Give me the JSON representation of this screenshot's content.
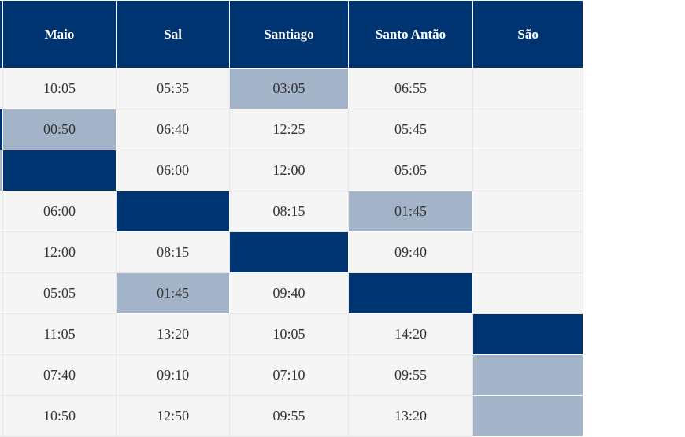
{
  "headers": [
    "",
    "Maio",
    "Sal",
    "Santiago",
    "Santo Antão",
    "São"
  ],
  "rows": [
    {
      "cells": [
        {
          "v": "",
          "s": "plain"
        },
        {
          "v": "10:05",
          "s": "plain"
        },
        {
          "v": "05:35",
          "s": "plain"
        },
        {
          "v": "03:05",
          "s": "light"
        },
        {
          "v": "06:55",
          "s": "plain"
        },
        {
          "v": "",
          "s": "plain"
        }
      ]
    },
    {
      "cells": [
        {
          "v": "",
          "s": "dark"
        },
        {
          "v": "00:50",
          "s": "light"
        },
        {
          "v": "06:40",
          "s": "plain"
        },
        {
          "v": "12:25",
          "s": "plain"
        },
        {
          "v": "05:45",
          "s": "plain"
        },
        {
          "v": "",
          "s": "plain"
        }
      ]
    },
    {
      "cells": [
        {
          "v": "",
          "s": "light"
        },
        {
          "v": "",
          "s": "dark"
        },
        {
          "v": "06:00",
          "s": "plain"
        },
        {
          "v": "12:00",
          "s": "plain"
        },
        {
          "v": "05:05",
          "s": "plain"
        },
        {
          "v": "",
          "s": "plain"
        }
      ]
    },
    {
      "cells": [
        {
          "v": "",
          "s": "plain"
        },
        {
          "v": "06:00",
          "s": "plain"
        },
        {
          "v": "",
          "s": "dark"
        },
        {
          "v": "08:15",
          "s": "plain"
        },
        {
          "v": "01:45",
          "s": "light"
        },
        {
          "v": "",
          "s": "plain"
        }
      ]
    },
    {
      "cells": [
        {
          "v": "",
          "s": "plain"
        },
        {
          "v": "12:00",
          "s": "plain"
        },
        {
          "v": "08:15",
          "s": "plain"
        },
        {
          "v": "",
          "s": "dark"
        },
        {
          "v": "09:40",
          "s": "plain"
        },
        {
          "v": "",
          "s": "plain"
        }
      ]
    },
    {
      "cells": [
        {
          "v": "",
          "s": "plain"
        },
        {
          "v": "05:05",
          "s": "plain"
        },
        {
          "v": "01:45",
          "s": "light"
        },
        {
          "v": "09:40",
          "s": "plain"
        },
        {
          "v": "",
          "s": "dark"
        },
        {
          "v": "",
          "s": "plain"
        }
      ]
    },
    {
      "cells": [
        {
          "v": "",
          "s": "plain"
        },
        {
          "v": "11:05",
          "s": "plain"
        },
        {
          "v": "13:20",
          "s": "plain"
        },
        {
          "v": "10:05",
          "s": "plain"
        },
        {
          "v": "14:20",
          "s": "plain"
        },
        {
          "v": "",
          "s": "dark"
        }
      ]
    },
    {
      "cells": [
        {
          "v": "",
          "s": "plain"
        },
        {
          "v": "07:40",
          "s": "plain"
        },
        {
          "v": "09:10",
          "s": "plain"
        },
        {
          "v": "07:10",
          "s": "plain"
        },
        {
          "v": "09:55",
          "s": "plain"
        },
        {
          "v": "",
          "s": "light"
        }
      ]
    },
    {
      "cells": [
        {
          "v": "",
          "s": "plain"
        },
        {
          "v": "10:50",
          "s": "plain"
        },
        {
          "v": "12:50",
          "s": "plain"
        },
        {
          "v": "09:55",
          "s": "plain"
        },
        {
          "v": "13:20",
          "s": "plain"
        },
        {
          "v": "",
          "s": "light"
        }
      ]
    }
  ]
}
